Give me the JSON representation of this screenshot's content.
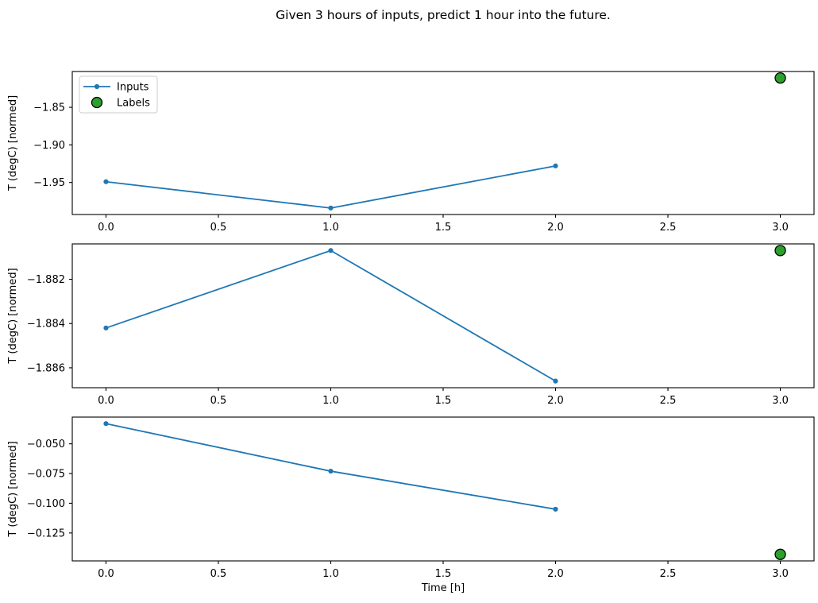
{
  "figure": {
    "title": "Given 3 hours of inputs, predict 1 hour into the future.",
    "background": "#ffffff"
  },
  "legend": {
    "position": "upper-left-subplot-1",
    "entries": [
      {
        "label": "Inputs",
        "marker": "line-with-dot",
        "color": "#1f77b4"
      },
      {
        "label": "Labels",
        "marker": "circle",
        "color": "#2ca02c"
      }
    ]
  },
  "colors": {
    "inputs_line": "#1f77b4",
    "labels_fill": "#2ca02c",
    "marker_edge": "#000000",
    "axis": "#000000",
    "tick_text": "#000000",
    "legend_border": "#cccccc",
    "legend_fill": "#ffffff"
  },
  "chart_data": [
    {
      "type": "line",
      "subplot": 1,
      "ylabel": "T (degC) [normed]",
      "xlabel": "",
      "xlim": [
        -0.15,
        3.15
      ],
      "ylim": [
        -1.9926,
        -1.8024
      ],
      "xticks": {
        "values": [
          0,
          0.5,
          1,
          1.5,
          2,
          2.5,
          3
        ],
        "labels": [
          "0.0",
          "0.5",
          "1.0",
          "1.5",
          "2.0",
          "2.5",
          "3.0"
        ]
      },
      "yticks": {
        "values": [
          -1.85,
          -1.9,
          -1.95
        ],
        "labels": [
          "−1.85",
          "−1.90",
          "−1.95"
        ]
      },
      "grid": false,
      "show_legend": true,
      "series": [
        {
          "name": "Inputs",
          "style": "line+marker",
          "x": [
            0,
            1,
            2
          ],
          "y": [
            -1.949,
            -1.984,
            -1.928
          ]
        },
        {
          "name": "Labels",
          "style": "scatter",
          "x": [
            3
          ],
          "y": [
            -1.811
          ]
        }
      ]
    },
    {
      "type": "line",
      "subplot": 2,
      "ylabel": "T (degC) [normed]",
      "xlabel": "",
      "xlim": [
        -0.15,
        3.15
      ],
      "ylim": [
        -1.8869,
        -1.8804
      ],
      "xticks": {
        "values": [
          0,
          0.5,
          1,
          1.5,
          2,
          2.5,
          3
        ],
        "labels": [
          "0.0",
          "0.5",
          "1.0",
          "1.5",
          "2.0",
          "2.5",
          "3.0"
        ]
      },
      "yticks": {
        "values": [
          -1.882,
          -1.884,
          -1.886
        ],
        "labels": [
          "−1.882",
          "−1.884",
          "−1.886"
        ]
      },
      "grid": false,
      "show_legend": false,
      "series": [
        {
          "name": "Inputs",
          "style": "line+marker",
          "x": [
            0,
            1,
            2
          ],
          "y": [
            -1.8842,
            -1.8807,
            -1.8866
          ]
        },
        {
          "name": "Labels",
          "style": "scatter",
          "x": [
            3
          ],
          "y": [
            -1.8807
          ]
        }
      ]
    },
    {
      "type": "line",
      "subplot": 3,
      "ylabel": "T (degC) [normed]",
      "xlabel": "Time [h]",
      "xlim": [
        -0.15,
        3.15
      ],
      "ylim": [
        -0.1485,
        -0.0275
      ],
      "xticks": {
        "values": [
          0,
          0.5,
          1,
          1.5,
          2,
          2.5,
          3
        ],
        "labels": [
          "0.0",
          "0.5",
          "1.0",
          "1.5",
          "2.0",
          "2.5",
          "3.0"
        ]
      },
      "yticks": {
        "values": [
          -0.05,
          -0.075,
          -0.1,
          -0.125
        ],
        "labels": [
          "−0.050",
          "−0.075",
          "−0.100",
          "−0.125"
        ]
      },
      "grid": false,
      "show_legend": false,
      "series": [
        {
          "name": "Inputs",
          "style": "line+marker",
          "x": [
            0,
            1,
            2
          ],
          "y": [
            -0.033,
            -0.073,
            -0.105
          ]
        },
        {
          "name": "Labels",
          "style": "scatter",
          "x": [
            3
          ],
          "y": [
            -0.143
          ]
        }
      ]
    }
  ]
}
